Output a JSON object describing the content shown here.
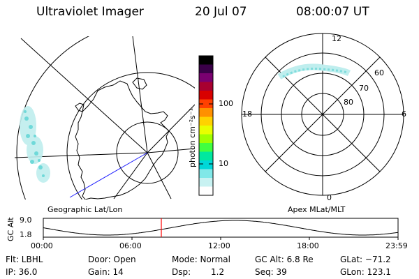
{
  "header": {
    "instrument": "Ultraviolet Imager",
    "date": "20 Jul 07",
    "time": "08:00:07 UT"
  },
  "left_map": {
    "label": "Geographic Lat/Lon"
  },
  "right_map": {
    "label": "Apex MLat/MLT",
    "mlt_labels": [
      "12",
      "18",
      "6",
      "0"
    ],
    "mlat_labels": [
      "60",
      "70",
      "80"
    ]
  },
  "colorbar": {
    "unit": "photon cm⁻²s⁻¹",
    "ticks": [
      "100",
      "10"
    ],
    "colors": [
      "#000000",
      "#3a0048",
      "#7a0070",
      "#a80030",
      "#d80000",
      "#ff4000",
      "#ff9000",
      "#ffd200",
      "#e8ff00",
      "#a0ff00",
      "#40ff40",
      "#00e8a0",
      "#00d8d8",
      "#80e8e8",
      "#c8f2f2",
      "#ffffff"
    ]
  },
  "timeline": {
    "ylabel": "GC Alt",
    "y_ticks": [
      "9.0",
      "1.8"
    ],
    "x_ticks": [
      "00:00",
      "06:00",
      "12:00",
      "18:00",
      "23:59"
    ],
    "marker_color": "#ff0000"
  },
  "info": {
    "filter": "Flt: LBHL",
    "ip": "IP: 36.0",
    "door": "Door: Open",
    "gain": "Gain: 14",
    "mode": "Mode: Normal",
    "dsp_label": "Dsp:",
    "dsp_value": "1.2",
    "gc_alt": "GC Alt: 6.8 Re",
    "seq": "Seq: 39",
    "glat": "GLat: −71.2",
    "glon": "GLon: 123.1"
  }
}
